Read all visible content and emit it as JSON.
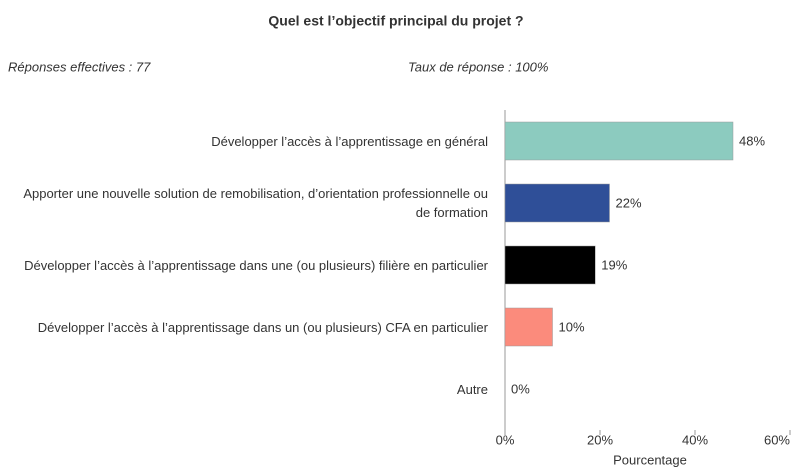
{
  "chart_data": {
    "type": "hbar",
    "title": "Quel est l’objectif principal du projet ?",
    "subtitles": [
      "Réponses effectives : 77",
      "Taux de réponse : 100%"
    ],
    "categories": [
      "Développer l’accès à l’apprentissage en général",
      "Apporter une nouvelle solution de remobilisation, d’orientation professionnelle ou de formation",
      "Développer l’accès à l’apprentissage dans une (ou plusieurs) filière en particulier",
      "Développer l’accès à l’apprentissage dans un (ou plusieurs) CFA en particulier",
      "Autre"
    ],
    "values": [
      48,
      22,
      19,
      10,
      0
    ],
    "value_labels": [
      "48%",
      "22%",
      "19%",
      "10%",
      "0%"
    ],
    "colors": [
      "#8ccbbf",
      "#2f4f98",
      "#000000",
      "#fb8b7c",
      null
    ],
    "xlim": [
      0,
      60
    ],
    "xticks": [
      {
        "value": 0,
        "label": "0%"
      },
      {
        "value": 20,
        "label": "20%"
      },
      {
        "value": 40,
        "label": "40%"
      },
      {
        "value": 60,
        "label": "60%"
      }
    ],
    "xlabel": "Pourcentage"
  }
}
